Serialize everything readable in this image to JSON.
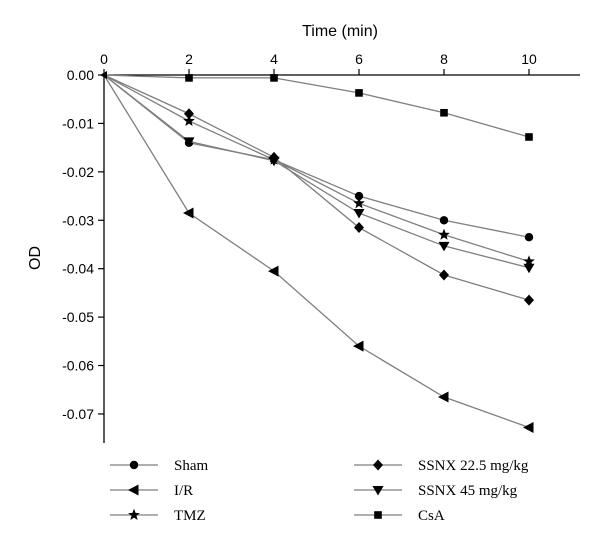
{
  "chart_data": {
    "type": "line",
    "xlabel": "Time (min)",
    "ylabel": "OD",
    "x_axis_position": "top",
    "xlim": [
      0,
      11.2
    ],
    "ylim": [
      -0.076,
      0.0
    ],
    "x_ticks": [
      0,
      2,
      4,
      6,
      8,
      10
    ],
    "y_ticks": [
      0.0,
      -0.01,
      -0.02,
      -0.03,
      -0.04,
      -0.05,
      -0.06,
      -0.07
    ],
    "x_tick_labels": [
      "0",
      "2",
      "4",
      "6",
      "8",
      "10"
    ],
    "y_tick_labels": [
      "0.00",
      "-0.01",
      "-0.02",
      "-0.03",
      "-0.04",
      "-0.05",
      "-0.06",
      "-0.07"
    ],
    "x": [
      0,
      2,
      4,
      6,
      8,
      10
    ],
    "series_color": "#7f7f7f",
    "marker_color": "#000000",
    "legend_position": "bottom",
    "grid": false,
    "series": [
      {
        "name": "Sham",
        "marker": "circle",
        "values": [
          0,
          -0.014,
          -0.0175,
          -0.025,
          -0.03,
          -0.0335
        ]
      },
      {
        "name": "I/R",
        "marker": "triangle-left",
        "values": [
          0,
          -0.0285,
          -0.0405,
          -0.056,
          -0.0665,
          -0.0728
        ]
      },
      {
        "name": "TMZ",
        "marker": "star",
        "values": [
          0,
          -0.0095,
          -0.0175,
          -0.0265,
          -0.033,
          -0.0385
        ]
      },
      {
        "name": "SSNX 22.5 mg/kg",
        "marker": "diamond",
        "values": [
          0,
          -0.008,
          -0.017,
          -0.0315,
          -0.0413,
          -0.0465
        ]
      },
      {
        "name": "SSNX 45 mg/kg",
        "marker": "triangle-down",
        "values": [
          0,
          -0.0137,
          -0.0177,
          -0.0285,
          -0.0353,
          -0.0398
        ]
      },
      {
        "name": "CsA",
        "marker": "square",
        "values": [
          0,
          -0.0006,
          -0.0006,
          -0.0037,
          -0.0078,
          -0.0128
        ]
      }
    ]
  }
}
